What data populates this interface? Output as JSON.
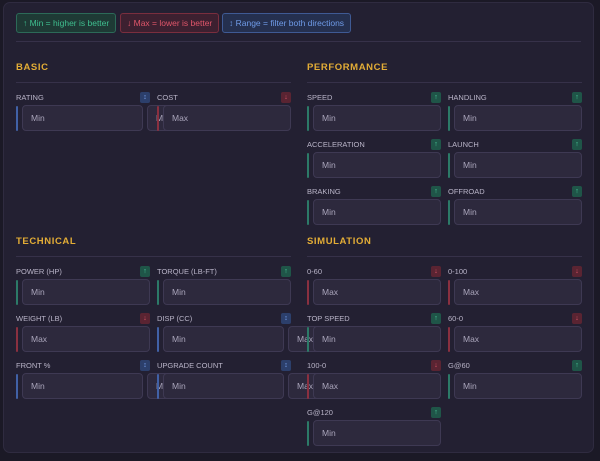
{
  "legend": {
    "min": "↑ Min = higher is better",
    "max": "↓ Max = lower is better",
    "range": "↕ Range = filter both directions"
  },
  "colors": {
    "min": "#3fbf8f",
    "max": "#e0566a",
    "range": "#6f9be8",
    "section_title": "#e3ad36"
  },
  "placeholders": {
    "min": "Min",
    "max": "Max"
  },
  "sections": [
    {
      "title": "BASIC",
      "fields": [
        {
          "label": "RATING",
          "type": "range"
        },
        {
          "label": "COST",
          "type": "max"
        }
      ]
    },
    {
      "title": "PERFORMANCE",
      "fields": [
        {
          "label": "SPEED",
          "type": "min"
        },
        {
          "label": "HANDLING",
          "type": "min"
        },
        {
          "label": "ACCELERATION",
          "type": "min"
        },
        {
          "label": "LAUNCH",
          "type": "min"
        },
        {
          "label": "BRAKING",
          "type": "min"
        },
        {
          "label": "OFFROAD",
          "type": "min"
        }
      ]
    },
    {
      "title": "TECHNICAL",
      "fields": [
        {
          "label": "POWER (HP)",
          "type": "min"
        },
        {
          "label": "TORQUE (LB-FT)",
          "type": "min"
        },
        {
          "label": "WEIGHT (LB)",
          "type": "max"
        },
        {
          "label": "DISP (CC)",
          "type": "range"
        },
        {
          "label": "FRONT %",
          "type": "range"
        },
        {
          "label": "UPGRADE COUNT",
          "type": "range"
        }
      ]
    },
    {
      "title": "SIMULATION",
      "fields": [
        {
          "label": "0-60",
          "type": "max"
        },
        {
          "label": "0-100",
          "type": "max"
        },
        {
          "label": "TOP SPEED",
          "type": "min"
        },
        {
          "label": "60-0",
          "type": "max"
        },
        {
          "label": "100-0",
          "type": "max"
        },
        {
          "label": "G@60",
          "type": "min"
        },
        {
          "label": "G@120",
          "type": "min"
        }
      ]
    }
  ]
}
